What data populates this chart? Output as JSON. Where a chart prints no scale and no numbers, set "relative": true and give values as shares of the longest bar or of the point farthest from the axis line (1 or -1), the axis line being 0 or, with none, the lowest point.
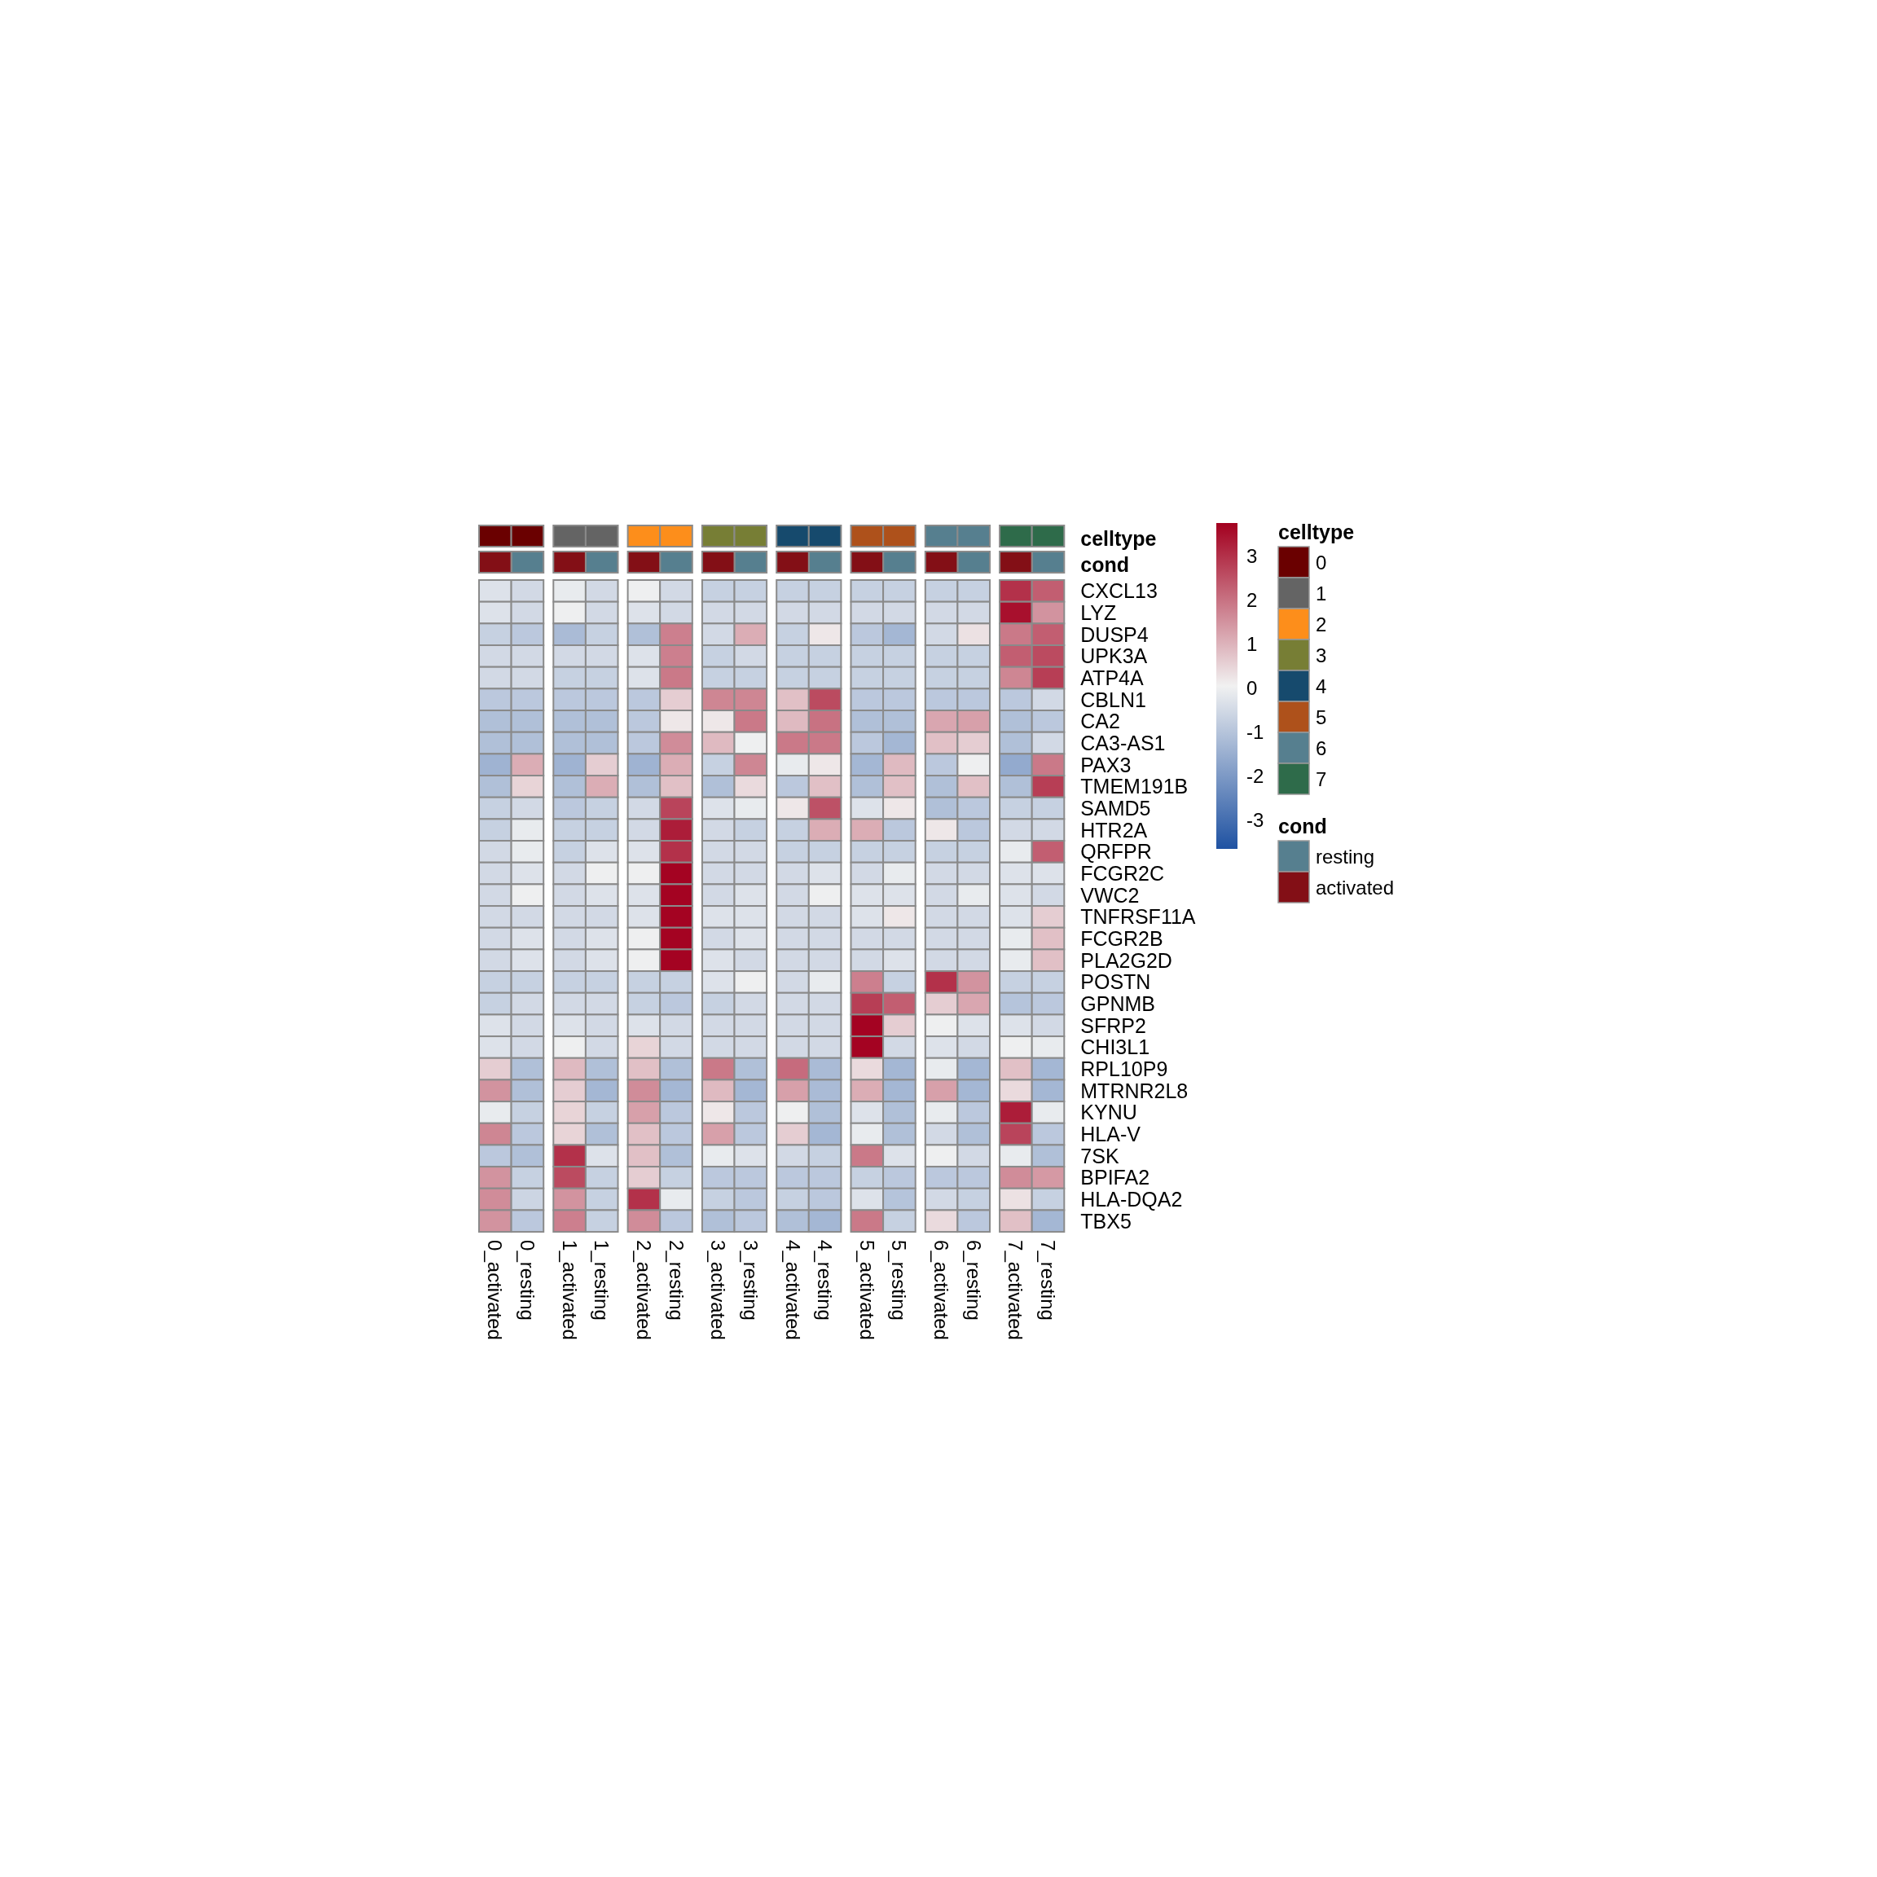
{
  "chart_data": [
    {
      "type": "bar",
      "relative": true,
      "stacked": true,
      "ylabel": "celltype",
      "legend": "right",
      "legend_title": "celltype",
      "categories": [
        null,
        null,
        null,
        null,
        null,
        null,
        null,
        null,
        null,
        null,
        null,
        null,
        null,
        null,
        null,
        null
      ],
      "series": [
        {
          "name": "0",
          "color": "#6a0000",
          "values": [
            1,
            1,
            null,
            null,
            null,
            null,
            null,
            null,
            null,
            null,
            null,
            null,
            null,
            null,
            null,
            null
          ]
        },
        {
          "name": "1",
          "color": "#646464",
          "values": [
            null,
            null,
            1,
            1,
            null,
            null,
            null,
            null,
            null,
            null,
            null,
            null,
            null,
            null,
            null,
            null
          ]
        },
        {
          "name": "2",
          "color": "#fd8e1b",
          "values": [
            null,
            null,
            null,
            null,
            1,
            1,
            null,
            null,
            null,
            null,
            null,
            null,
            null,
            null,
            null,
            null
          ]
        },
        {
          "name": "3",
          "color": "#777e35",
          "values": [
            null,
            null,
            null,
            null,
            null,
            null,
            1,
            1,
            null,
            null,
            null,
            null,
            null,
            null,
            null,
            null
          ]
        },
        {
          "name": "4",
          "color": "#164a6d",
          "values": [
            null,
            null,
            null,
            null,
            null,
            null,
            null,
            null,
            1,
            1,
            null,
            null,
            null,
            null,
            null,
            null
          ]
        },
        {
          "name": "5",
          "color": "#ae511b",
          "values": [
            null,
            null,
            null,
            null,
            null,
            null,
            null,
            null,
            null,
            null,
            1,
            1,
            null,
            null,
            null,
            null
          ]
        },
        {
          "name": "6",
          "color": "#567f8f",
          "values": [
            null,
            null,
            null,
            null,
            null,
            null,
            null,
            null,
            null,
            null,
            null,
            null,
            1,
            1,
            null,
            null
          ]
        },
        {
          "name": "7",
          "color": "#2e6b4a",
          "values": [
            null,
            null,
            null,
            null,
            null,
            null,
            null,
            null,
            null,
            null,
            null,
            null,
            null,
            null,
            1,
            1
          ]
        }
      ]
    },
    {
      "type": "bar",
      "relative": true,
      "stacked": true,
      "ylabel": "cond",
      "legend": "right",
      "legend_title": "cond",
      "categories": [
        null,
        null,
        null,
        null,
        null,
        null,
        null,
        null,
        null,
        null,
        null,
        null,
        null,
        null,
        null,
        null
      ],
      "series": [
        {
          "name": "resting",
          "color": "#567f8f",
          "values": [
            null,
            1,
            null,
            1,
            null,
            1,
            null,
            1,
            null,
            1,
            null,
            1,
            null,
            1,
            null,
            1
          ]
        },
        {
          "name": "activated",
          "color": "#830f16",
          "values": [
            1,
            null,
            1,
            null,
            1,
            null,
            1,
            null,
            1,
            null,
            1,
            null,
            1,
            null,
            1,
            null
          ]
        }
      ]
    },
    {
      "type": "heatmap",
      "categories": [
        "0_activated",
        "0_resting",
        "1_activated",
        "1_resting",
        "2_activated",
        "2_resting",
        "3_activated",
        "3_resting",
        "4_activated",
        "4_resting",
        "5_activated",
        "5_resting",
        "6_activated",
        "6_resting",
        "7_activated",
        "7_resting"
      ],
      "y_categories": [
        "CXCL13",
        "LYZ",
        "DUSP4",
        "UPK3A",
        "ATP4A",
        "CBLN1",
        "CA2",
        "CA3-AS1",
        "PAX3",
        "TMEM191B",
        "SAMD5",
        "HTR2A",
        "QRFPR",
        "FCGR2C",
        "VWC2",
        "TNFRSF11A",
        "FCGR2B",
        "PLA2G2D",
        "POSTN",
        "GPNMB",
        "SFRP2",
        "CHI3L1",
        "RPL10P9",
        "MTRNR2L8",
        "KYNU",
        "HLA-V",
        "7SK",
        "BPIFA2",
        "HLA-DQA2",
        "TBX5"
      ],
      "cells": [
        [
          -0.3,
          -0.5,
          -0.1,
          -0.5,
          0.0,
          -0.5,
          -0.7,
          -0.7,
          -0.7,
          -0.7,
          -0.7,
          -0.7,
          -0.7,
          -0.7,
          3.0,
          2.3
        ],
        [
          -0.3,
          -0.5,
          0.0,
          -0.5,
          -0.3,
          -0.5,
          -0.5,
          -0.5,
          -0.5,
          -0.5,
          -0.5,
          -0.5,
          -0.5,
          -0.5,
          3.5,
          1.5
        ],
        [
          -0.7,
          -0.9,
          -1.2,
          -0.7,
          -1.1,
          1.8,
          -0.5,
          1.1,
          -0.7,
          0.2,
          -0.9,
          -1.3,
          -0.5,
          0.3,
          1.9,
          2.3
        ],
        [
          -0.5,
          -0.5,
          -0.5,
          -0.5,
          -0.3,
          1.8,
          -0.7,
          -0.5,
          -0.7,
          -0.7,
          -0.7,
          -0.7,
          -0.7,
          -0.7,
          2.3,
          2.6
        ],
        [
          -0.5,
          -0.5,
          -0.7,
          -0.7,
          -0.3,
          1.9,
          -0.7,
          -0.7,
          -0.7,
          -0.7,
          -0.7,
          -0.7,
          -0.7,
          -0.7,
          1.7,
          2.8
        ],
        [
          -0.9,
          -0.9,
          -0.9,
          -0.9,
          -0.9,
          0.6,
          1.7,
          1.7,
          0.8,
          2.6,
          -0.9,
          -0.9,
          -0.9,
          -0.9,
          -0.9,
          -0.5
        ],
        [
          -1.1,
          -1.1,
          -1.1,
          -1.1,
          -0.9,
          0.2,
          0.2,
          1.9,
          0.9,
          2.0,
          -1.1,
          -1.1,
          1.2,
          1.3,
          -1.1,
          -0.9
        ],
        [
          -1.1,
          -1.1,
          -1.1,
          -1.1,
          -0.9,
          1.6,
          0.9,
          0.0,
          1.9,
          1.9,
          -0.9,
          -1.3,
          0.8,
          0.6,
          -1.1,
          -0.5
        ],
        [
          -1.4,
          1.1,
          -1.4,
          0.6,
          -1.4,
          1.1,
          -0.7,
          1.7,
          -0.1,
          0.2,
          -1.3,
          0.9,
          -0.9,
          0.0,
          -1.6,
          1.9
        ],
        [
          -1.1,
          0.5,
          -1.1,
          1.1,
          -1.1,
          0.8,
          -1.1,
          0.4,
          -0.9,
          0.8,
          -1.1,
          0.8,
          -1.1,
          0.8,
          -1.1,
          2.8
        ],
        [
          -0.7,
          -0.5,
          -0.9,
          -0.7,
          -0.5,
          2.7,
          -0.3,
          -0.1,
          0.2,
          2.5,
          -0.3,
          0.2,
          -1.1,
          -0.9,
          -0.7,
          -0.7
        ],
        [
          -0.7,
          -0.1,
          -0.7,
          -0.7,
          -0.5,
          3.3,
          -0.5,
          -0.7,
          -0.7,
          1.1,
          1.1,
          -0.9,
          0.2,
          -0.9,
          -0.5,
          -0.5
        ],
        [
          -0.5,
          -0.1,
          -0.7,
          -0.3,
          -0.3,
          3.0,
          -0.5,
          -0.5,
          -0.7,
          -0.7,
          -0.7,
          -0.7,
          -0.7,
          -0.7,
          -0.1,
          2.3
        ],
        [
          -0.5,
          -0.3,
          -0.5,
          0.0,
          0.0,
          3.7,
          -0.5,
          -0.5,
          -0.5,
          -0.3,
          -0.5,
          -0.1,
          -0.5,
          -0.5,
          -0.3,
          -0.3
        ],
        [
          -0.5,
          0.0,
          -0.5,
          -0.3,
          -0.3,
          3.7,
          -0.5,
          -0.3,
          -0.5,
          0.0,
          -0.3,
          -0.3,
          -0.5,
          -0.1,
          -0.3,
          -0.5
        ],
        [
          -0.5,
          -0.5,
          -0.5,
          -0.5,
          -0.3,
          3.7,
          -0.3,
          -0.3,
          -0.5,
          -0.5,
          -0.3,
          0.2,
          -0.5,
          -0.5,
          -0.3,
          0.6
        ],
        [
          -0.5,
          -0.3,
          -0.5,
          -0.3,
          0.0,
          3.7,
          -0.5,
          -0.3,
          -0.5,
          -0.5,
          -0.5,
          -0.5,
          -0.5,
          -0.5,
          -0.1,
          0.8
        ],
        [
          -0.5,
          -0.3,
          -0.5,
          -0.3,
          0.0,
          3.7,
          -0.3,
          -0.5,
          -0.5,
          -0.5,
          -0.5,
          -0.3,
          -0.5,
          -0.5,
          -0.1,
          0.8
        ],
        [
          -0.7,
          -0.7,
          -0.7,
          -0.7,
          -0.7,
          -0.7,
          -0.3,
          0.0,
          -0.5,
          -0.1,
          1.8,
          -0.7,
          3.0,
          1.5,
          -0.7,
          -0.7
        ],
        [
          -0.7,
          -0.5,
          -0.5,
          -0.5,
          -0.7,
          -0.9,
          -0.7,
          -0.5,
          -0.5,
          -0.5,
          2.8,
          2.3,
          0.6,
          1.2,
          -1.0,
          -0.9
        ],
        [
          -0.3,
          -0.5,
          -0.3,
          -0.5,
          -0.3,
          -0.5,
          -0.5,
          -0.5,
          -0.5,
          -0.5,
          3.7,
          0.6,
          0.0,
          -0.3,
          -0.3,
          -0.5
        ],
        [
          -0.3,
          -0.5,
          0.0,
          -0.5,
          0.5,
          -0.5,
          -0.5,
          -0.5,
          -0.5,
          -0.5,
          3.7,
          -0.5,
          -0.3,
          -0.5,
          0.0,
          -0.1
        ],
        [
          0.6,
          -1.1,
          0.9,
          -1.1,
          0.8,
          -1.1,
          1.9,
          -1.1,
          2.1,
          -1.2,
          0.4,
          -1.3,
          -0.1,
          -1.3,
          0.8,
          -1.3
        ],
        [
          1.5,
          -1.1,
          0.6,
          -1.3,
          1.6,
          -1.3,
          0.9,
          -1.3,
          1.3,
          -1.2,
          1.1,
          -1.3,
          1.3,
          -1.3,
          0.4,
          -1.3
        ],
        [
          -0.1,
          -0.7,
          0.5,
          -0.7,
          1.3,
          -0.9,
          0.2,
          -0.9,
          0.0,
          -1.1,
          -0.3,
          -1.1,
          -0.1,
          -0.9,
          3.3,
          -0.1
        ],
        [
          1.7,
          -0.9,
          0.5,
          -1.1,
          0.8,
          -0.9,
          1.3,
          -0.9,
          0.6,
          -1.3,
          -0.1,
          -1.1,
          -0.5,
          -1.1,
          2.7,
          -0.9
        ],
        [
          -0.9,
          -1.1,
          3.0,
          -0.3,
          0.8,
          -1.1,
          -0.1,
          -0.3,
          -0.5,
          -0.7,
          1.9,
          -0.3,
          0.0,
          -0.5,
          -0.1,
          -1.1
        ],
        [
          1.5,
          -0.7,
          2.6,
          -0.7,
          0.6,
          -0.7,
          -0.9,
          -0.9,
          -0.9,
          -0.9,
          -0.7,
          -0.9,
          -0.9,
          -0.9,
          1.6,
          1.4
        ],
        [
          1.6,
          -0.6,
          1.5,
          -0.7,
          3.0,
          -0.1,
          -0.7,
          -0.9,
          -0.7,
          -0.9,
          -0.3,
          -1.0,
          -0.5,
          -0.7,
          0.3,
          -0.7
        ],
        [
          1.5,
          -0.9,
          1.8,
          -0.7,
          1.6,
          -0.9,
          -1.1,
          -0.9,
          -1.1,
          -1.3,
          1.9,
          -0.7,
          0.4,
          -0.9,
          0.8,
          -1.3
        ]
      ],
      "clim": [
        -3.65,
        3.75
      ],
      "cticks": [
        -3,
        -2,
        -1,
        0,
        1,
        2,
        3
      ]
    }
  ]
}
